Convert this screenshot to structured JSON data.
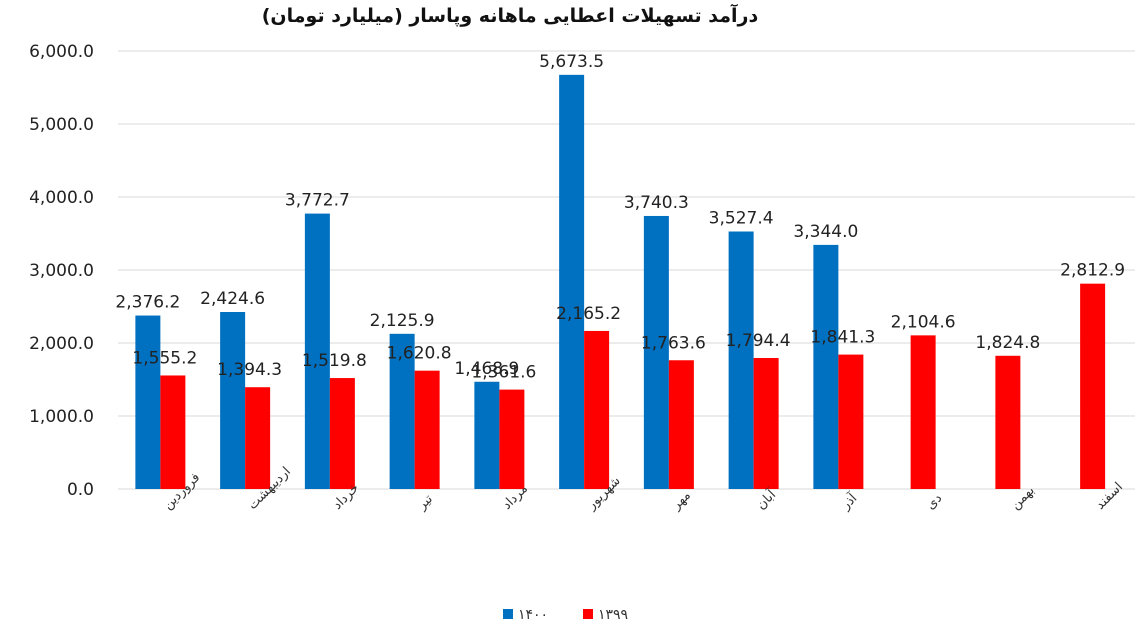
{
  "chart_data": {
    "type": "bar",
    "title": "درآمد تسهیلات اعطایی ماهانه وپاسار (میلیارد تومان)",
    "categories": [
      "فروردین",
      "اردیبهشت",
      "خرداد",
      "تیر",
      "مرداد",
      "شهریور",
      "مهر",
      "آبان",
      "آذر",
      "دی",
      "بهمن",
      "اسفند"
    ],
    "series": [
      {
        "name": "۱۴۰۰",
        "color": "#0070c0",
        "values": [
          2376.2,
          2424.6,
          3772.7,
          2125.9,
          1468.9,
          5673.5,
          3740.3,
          3527.4,
          3344.0,
          null,
          null,
          null
        ],
        "labels": [
          "2,376.2",
          "2,424.6",
          "3,772.7",
          "2,125.9",
          "1,468.9",
          "5,673.5",
          "3,740.3",
          "3,527.4",
          "3,344.0",
          "",
          "",
          ""
        ]
      },
      {
        "name": "۱۳۹۹",
        "color": "#ff0000",
        "values": [
          1555.2,
          1394.3,
          1519.8,
          1620.8,
          1361.6,
          2165.2,
          1763.6,
          1794.4,
          1841.3,
          2104.6,
          1824.8,
          2812.9
        ],
        "labels": [
          "1,555.2",
          "1,394.3",
          "1,519.8",
          "1,620.8",
          "1,361.6",
          "2,165.2",
          "1,763.6",
          "1,794.4",
          "1,841.3",
          "2,104.6",
          "1,824.8",
          "2,812.9"
        ]
      }
    ],
    "y_ticks": [
      "0.0",
      "1,000.0",
      "2,000.0",
      "3,000.0",
      "4,000.0",
      "5,000.0",
      "6,000.0"
    ],
    "ylim": [
      0,
      6000
    ],
    "grid": true,
    "legend": "bottom-center"
  }
}
